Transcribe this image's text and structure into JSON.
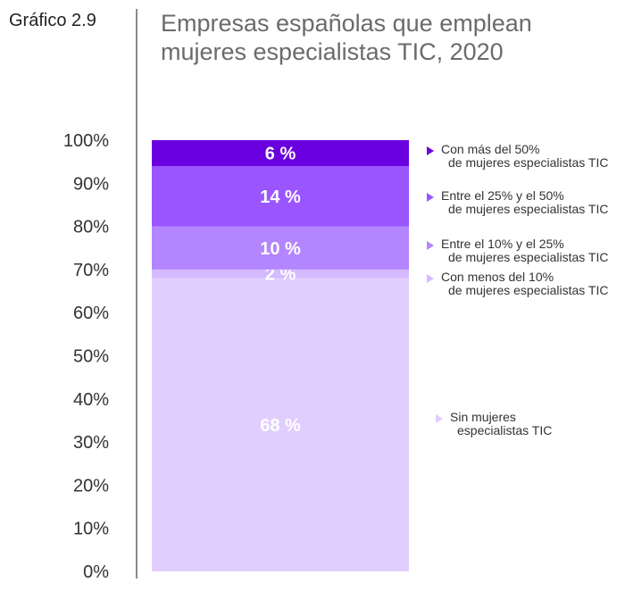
{
  "figure_label": "Gráfico 2.9",
  "title_line1": "Empresas españolas que emplean",
  "title_line2": "mujeres especialistas TIC, 2020",
  "chart_data": {
    "type": "bar",
    "stacked": true,
    "title": "Empresas españolas que emplean mujeres especialistas TIC, 2020",
    "ylim": [
      0,
      100
    ],
    "yticks": [
      "0%",
      "10%",
      "20%",
      "30%",
      "40%",
      "50%",
      "60%",
      "70%",
      "80%",
      "90%",
      "100%"
    ],
    "series": [
      {
        "name": "Sin mujeres especialistas TIC",
        "value": 68,
        "label": "68 %",
        "color": "#e1cefe"
      },
      {
        "name": "Con menos del 10% de mujeres especialistas TIC",
        "value": 2,
        "label": "2 %",
        "color": "#d5baff"
      },
      {
        "name": "Entre el 10% y el 25% de mujeres especialistas TIC",
        "value": 10,
        "label": "10 %",
        "color": "#b385ff"
      },
      {
        "name": "Entre el 25% y el 50% de mujeres especialistas TIC",
        "value": 14,
        "label": "14 %",
        "color": "#9a55ff"
      },
      {
        "name": "Con más del 50% de mujeres especialistas TIC",
        "value": 6,
        "label": "6 %",
        "color": "#6a00e0"
      }
    ]
  },
  "legend": [
    {
      "line1": "Con más del 50%",
      "line2": "de mujeres especialistas TIC",
      "color": "#6a00e0"
    },
    {
      "line1": "Entre el 25% y el 50%",
      "line2": "de mujeres especialistas TIC",
      "color": "#9a55ff"
    },
    {
      "line1": "Entre el 10% y el 25%",
      "line2": "de mujeres especialistas TIC",
      "color": "#b385ff"
    },
    {
      "line1": "Con menos del 10%",
      "line2": "de mujeres especialistas TIC",
      "color": "#d5baff"
    },
    {
      "line1": "Sin mujeres",
      "line2": "especialistas TIC",
      "color": "#e1cefe"
    }
  ]
}
